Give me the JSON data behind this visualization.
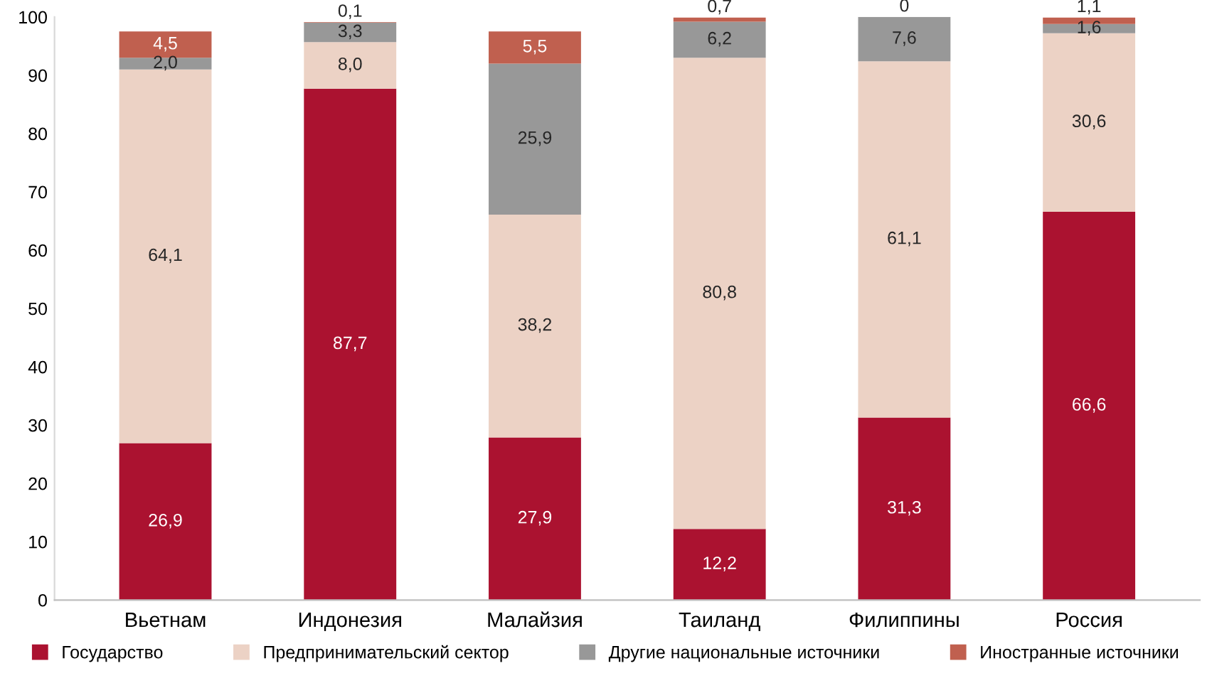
{
  "chart_data": {
    "type": "bar",
    "stacked": true,
    "categories": [
      "Вьетнам",
      "Индонезия",
      "Малайзия",
      "Таиланд",
      "Филиппины",
      "Россия"
    ],
    "series": [
      {
        "name": "Государство",
        "color": "#ab1230",
        "values": [
          26.9,
          87.7,
          27.9,
          12.2,
          31.3,
          66.6
        ],
        "value_labels": [
          "26,9",
          "87,7",
          "27,9",
          "12,2",
          "31,3",
          "66,6"
        ]
      },
      {
        "name": "Предпринимательский сектор",
        "color": "#ecd2c5",
        "values": [
          64.1,
          8.0,
          38.2,
          80.8,
          61.1,
          30.6
        ],
        "value_labels": [
          "64,1",
          "8,0",
          "38,2",
          "80,8",
          "61,1",
          "30,6"
        ]
      },
      {
        "name": "Другие национальные источники",
        "color": "#989898",
        "values": [
          2.0,
          3.3,
          25.9,
          6.2,
          7.6,
          1.6
        ],
        "value_labels": [
          "2,0",
          "3,3",
          "25,9",
          "6,2",
          "7,6",
          "1,6"
        ]
      },
      {
        "name": "Иностранные источники",
        "color": "#c0604f",
        "values": [
          4.5,
          0.1,
          5.5,
          0.7,
          0,
          1.1
        ],
        "value_labels": [
          "4,5",
          "0,1",
          "5,5",
          "0,7",
          "0",
          "1,1"
        ]
      }
    ],
    "ylim": [
      0,
      100
    ],
    "yticks": [
      0,
      10,
      20,
      30,
      40,
      50,
      60,
      70,
      80,
      90,
      100
    ],
    "grid": false,
    "legend": "bottom"
  }
}
